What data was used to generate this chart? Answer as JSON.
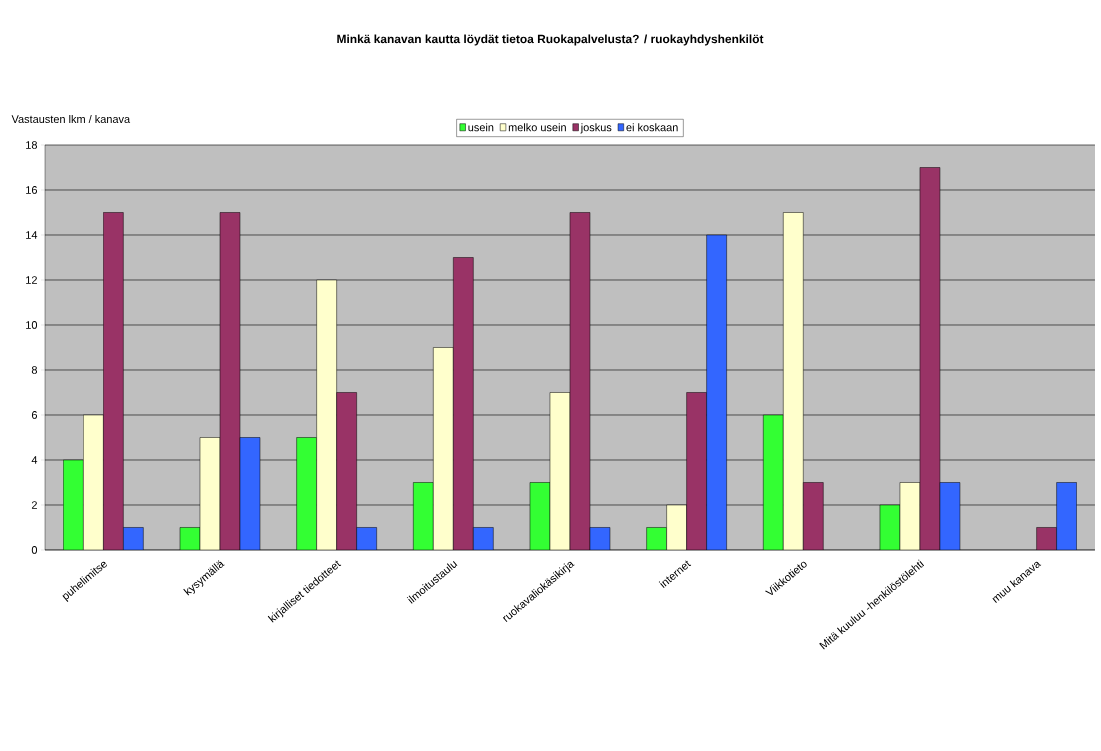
{
  "chart_data": {
    "type": "bar",
    "title": "Minkä kanavan kautta löydät tietoa Ruokapalvelusta? / ruokayhdyshenkilöt",
    "ylabel": "Vastausten lkm / kanava",
    "categories": [
      "puhelimitse",
      "kysymällä",
      "kirjalliset tiedotteet",
      "ilmoitustaulu",
      "ruokavaliokäsikirja",
      "internet",
      "Viikkotieto",
      "Mitä kuuluu -henkilöstölehti",
      "muu kanava"
    ],
    "series": [
      {
        "name": "usein",
        "color": "#33ff33",
        "values": [
          4,
          1,
          5,
          3,
          3,
          1,
          6,
          2,
          null
        ]
      },
      {
        "name": "melko usein",
        "color": "#ffffcc",
        "values": [
          6,
          5,
          12,
          9,
          7,
          2,
          15,
          3,
          null
        ]
      },
      {
        "name": "joskus",
        "color": "#993366",
        "values": [
          15,
          15,
          7,
          13,
          15,
          7,
          3,
          17,
          1
        ]
      },
      {
        "name": "ei koskaan",
        "color": "#3366ff",
        "values": [
          1,
          5,
          1,
          1,
          1,
          14,
          null,
          3,
          3
        ]
      }
    ],
    "ylim": [
      0,
      18
    ],
    "yticks": [
      0,
      2,
      4,
      6,
      8,
      10,
      12,
      14,
      16,
      18
    ],
    "grid": "y",
    "legend": "top"
  }
}
